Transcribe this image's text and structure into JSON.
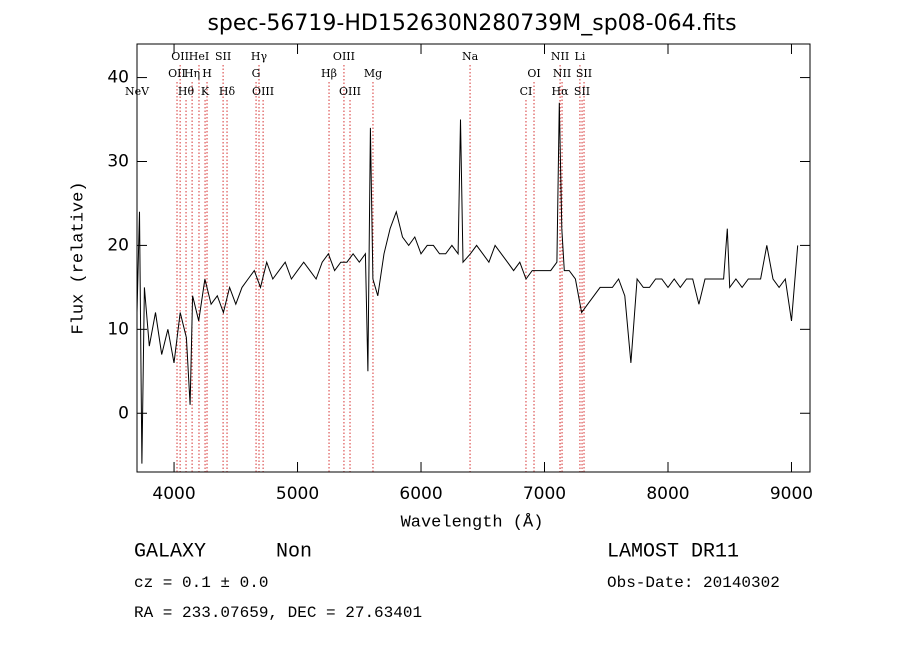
{
  "chart_data": {
    "type": "line",
    "title": "spec-56719-HD152630N280739M_sp08-064.fits",
    "xlabel": "Wavelength (Å)",
    "ylabel": "Flux (relative)",
    "xlim": [
      3700,
      9150
    ],
    "ylim": [
      -7,
      44
    ],
    "xticks": [
      4000,
      5000,
      6000,
      7000,
      8000,
      9000
    ],
    "yticks": [
      0,
      10,
      20,
      30,
      40
    ],
    "x": [
      3700,
      3720,
      3740,
      3760,
      3800,
      3850,
      3900,
      3950,
      4000,
      4050,
      4100,
      4130,
      4150,
      4200,
      4250,
      4300,
      4350,
      4400,
      4450,
      4500,
      4550,
      4600,
      4650,
      4700,
      4750,
      4800,
      4850,
      4900,
      4950,
      5000,
      5050,
      5100,
      5150,
      5200,
      5250,
      5300,
      5350,
      5400,
      5450,
      5500,
      5550,
      5570,
      5590,
      5610,
      5650,
      5700,
      5750,
      5800,
      5850,
      5900,
      5950,
      6000,
      6050,
      6100,
      6150,
      6200,
      6250,
      6300,
      6320,
      6340,
      6400,
      6450,
      6500,
      6550,
      6600,
      6650,
      6700,
      6750,
      6800,
      6850,
      6900,
      6950,
      7000,
      7050,
      7100,
      7120,
      7140,
      7160,
      7200,
      7250,
      7300,
      7350,
      7400,
      7450,
      7500,
      7550,
      7600,
      7650,
      7700,
      7750,
      7800,
      7850,
      7900,
      7950,
      8000,
      8050,
      8100,
      8150,
      8200,
      8250,
      8300,
      8350,
      8400,
      8450,
      8480,
      8500,
      8550,
      8600,
      8650,
      8700,
      8750,
      8800,
      8850,
      8900,
      8950,
      9000,
      9050
    ],
    "series": [
      {
        "name": "spectrum",
        "color": "#000000",
        "values": [
          12,
          24,
          -6,
          15,
          8,
          12,
          7,
          10,
          6,
          12,
          9,
          1,
          14,
          11,
          16,
          13,
          14,
          12,
          15,
          13,
          15,
          16,
          17,
          15,
          18,
          16,
          17,
          18,
          16,
          17,
          18,
          17,
          16,
          18,
          19,
          17,
          18,
          18,
          19,
          18,
          19,
          5,
          34,
          16,
          14,
          19,
          22,
          24,
          21,
          20,
          21,
          19,
          20,
          20,
          19,
          19,
          20,
          19,
          35,
          18,
          19,
          20,
          19,
          18,
          20,
          19,
          18,
          17,
          18,
          16,
          17,
          17,
          17,
          17,
          18,
          37,
          22,
          17,
          17,
          16,
          12,
          13,
          14,
          15,
          15,
          15,
          16,
          14,
          6,
          16,
          15,
          15,
          16,
          16,
          15,
          16,
          15,
          16,
          16,
          13,
          16,
          16,
          16,
          16,
          22,
          15,
          16,
          15,
          16,
          16,
          16,
          20,
          16,
          15,
          16,
          11,
          20
        ]
      }
    ],
    "line_color": "#cc0000",
    "annotations": [
      {
        "label": "OII",
        "x": 4049
      },
      {
        "label": "HeI",
        "x": 4202
      },
      {
        "label": "SII",
        "x": 4397
      },
      {
        "label": "Hγ",
        "x": 4688
      },
      {
        "label": "OIII",
        "x": 5376
      },
      {
        "label": "Na",
        "x": 6397
      },
      {
        "label": "NII",
        "x": 7126
      },
      {
        "label": "Li",
        "x": 7287
      },
      {
        "label": "OII",
        "x": 4024
      },
      {
        "label": "Hη",
        "x": 4146
      },
      {
        "label": "H",
        "x": 4267
      },
      {
        "label": "G",
        "x": 4664
      },
      {
        "label": "Hβ",
        "x": 5255
      },
      {
        "label": "Mg",
        "x": 5611
      },
      {
        "label": "OI",
        "x": 6915
      },
      {
        "label": "NII",
        "x": 7142
      },
      {
        "label": "SII",
        "x": 7320
      },
      {
        "label": "NeV",
        "x": 3692
      },
      {
        "label": "Hθ",
        "x": 4097
      },
      {
        "label": "K",
        "x": 4251
      },
      {
        "label": "Hδ",
        "x": 4429
      },
      {
        "label": "OIII",
        "x": 4721
      },
      {
        "label": "OIII",
        "x": 5425
      },
      {
        "label": "CI",
        "x": 6850
      },
      {
        "label": "Hα",
        "x": 7126
      },
      {
        "label": "SII",
        "x": 7304
      }
    ],
    "info": {
      "class": "GALAXY",
      "subclass": "Non",
      "survey": "LAMOST DR11",
      "cz": "cz = 0.1 ± 0.0",
      "obs_date": "Obs-Date: 20140302",
      "coords": "RA = 233.07659, DEC =  27.63401"
    }
  }
}
